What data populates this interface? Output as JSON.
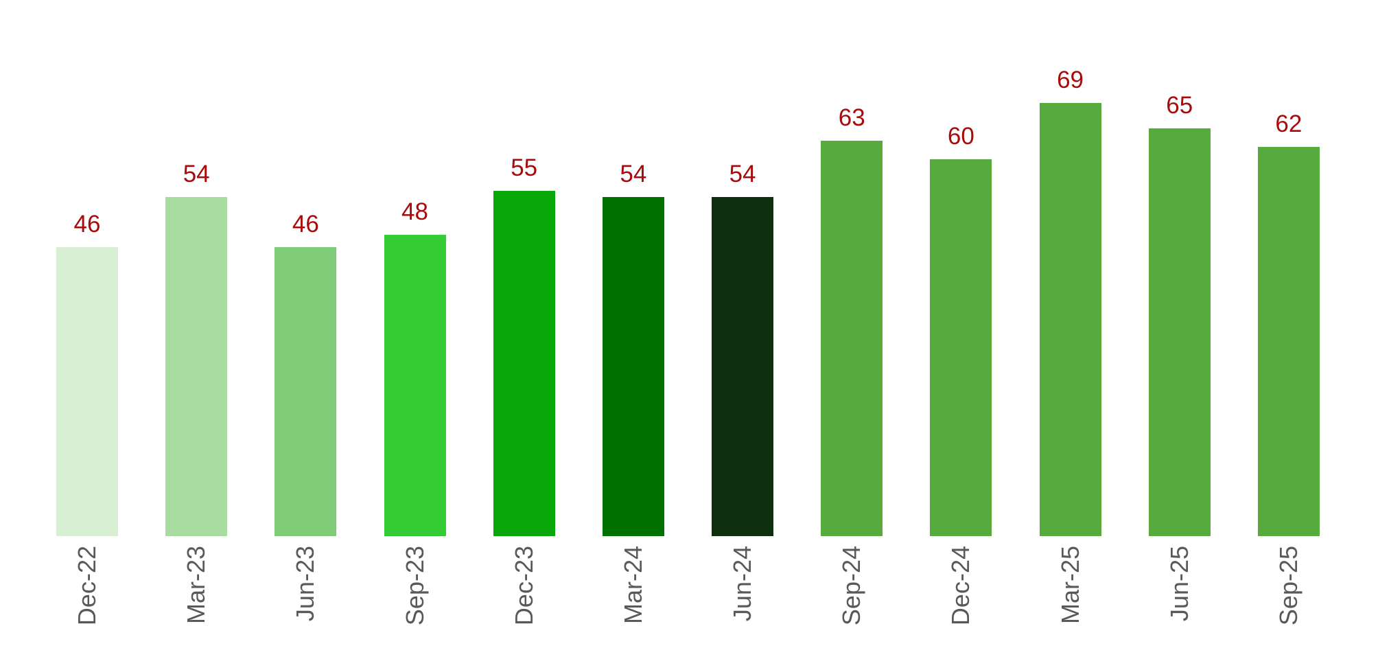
{
  "chart_data": {
    "type": "bar",
    "title": "",
    "xlabel": "",
    "ylabel": "",
    "categories": [
      "Dec-22",
      "Mar-23",
      "Jun-23",
      "Sep-23",
      "Dec-23",
      "Mar-24",
      "Jun-24",
      "Sep-24",
      "Dec-24",
      "Mar-25",
      "Jun-25",
      "Sep-25"
    ],
    "values": [
      46,
      54,
      46,
      48,
      55,
      54,
      54,
      63,
      60,
      69,
      65,
      62
    ],
    "bar_colors": [
      "#d9efd3",
      "#a9dca1",
      "#7fcd78",
      "#35cb35",
      "#0aa70a",
      "#017101",
      "#0d2f0d",
      "#57aa3e",
      "#57aa3e",
      "#57aa3e",
      "#57aa3e",
      "#57aa3e"
    ],
    "data_label_color": "#a80b0b",
    "axis_label_color": "#595959",
    "background": "#ffffff",
    "ylim": [
      0,
      70
    ],
    "grid": false,
    "legend": false,
    "data_labels_shown": true,
    "x_labels_rotation_deg": 90
  }
}
